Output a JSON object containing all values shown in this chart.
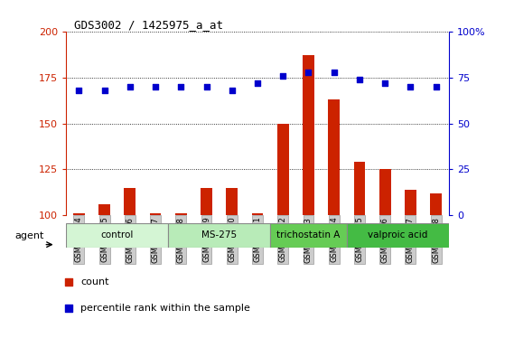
{
  "title": "GDS3002 / 1425975_a_at",
  "samples": [
    "GSM234794",
    "GSM234795",
    "GSM234796",
    "GSM234797",
    "GSM234798",
    "GSM234799",
    "GSM234800",
    "GSM234801",
    "GSM234802",
    "GSM234803",
    "GSM234804",
    "GSM234805",
    "GSM234806",
    "GSM234807",
    "GSM234808"
  ],
  "count_values": [
    101,
    106,
    115,
    101,
    101,
    115,
    115,
    101,
    150,
    187,
    163,
    129,
    125,
    114,
    112
  ],
  "percentile_values": [
    68,
    68,
    70,
    70,
    70,
    70,
    68,
    72,
    76,
    78,
    78,
    74,
    72,
    70,
    70
  ],
  "groups": [
    {
      "label": "control",
      "start": 0,
      "end": 4,
      "color": "#e0ffe0",
      "edge_color": "#888888"
    },
    {
      "label": "MS-275",
      "start": 4,
      "end": 8,
      "color": "#bbeeaa",
      "edge_color": "#888888"
    },
    {
      "label": "trichostatin A",
      "start": 8,
      "end": 11,
      "color": "#66dd55",
      "edge_color": "#888888"
    },
    {
      "label": "valproic acid",
      "start": 11,
      "end": 15,
      "color": "#44cc44",
      "edge_color": "#888888"
    }
  ],
  "ylim_left": [
    100,
    200
  ],
  "ylim_right": [
    0,
    100
  ],
  "yticks_left": [
    100,
    125,
    150,
    175,
    200
  ],
  "yticks_right": [
    0,
    25,
    50,
    75,
    100
  ],
  "bar_color": "#cc2200",
  "dot_color": "#0000cc",
  "agent_label": "agent",
  "legend_count": "count",
  "legend_percentile": "percentile rank within the sample",
  "background_color": "#ffffff",
  "grid_color": "#000000"
}
